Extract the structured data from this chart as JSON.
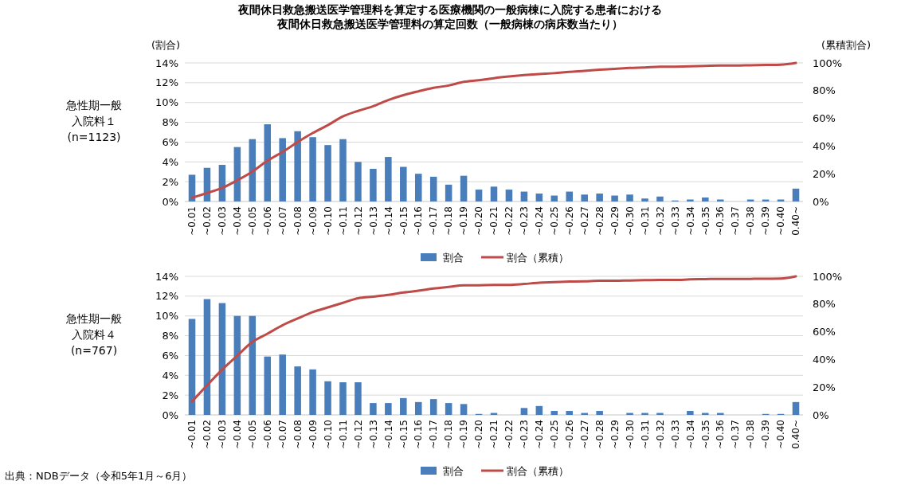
{
  "chart_data": [
    {
      "type": "bar",
      "title": "夜間休日救急搬送医学管理料を算定する医療機関の一般病棟に入院する患者における夜間休日救急搬送医学管理料の算定回数（一般病棟の病床数当たり）",
      "ylabel": "(割合)",
      "y2label": "(累積割合)",
      "categories": [
        "~0.01",
        "~0.02",
        "~0.03",
        "~0.04",
        "~0.05",
        "~0.06",
        "~0.07",
        "~0.08",
        "~0.09",
        "~0.10",
        "~0.11",
        "~0.12",
        "~0.13",
        "~0.14",
        "~0.15",
        "~0.16",
        "~0.17",
        "~0.18",
        "~0.19",
        "~0.20",
        "~0.21",
        "~0.22",
        "~0.23",
        "~0.24",
        "~0.25",
        "~0.26",
        "~0.27",
        "~0.28",
        "~0.29",
        "~0.30",
        "~0.31",
        "~0.32",
        "~0.33",
        "~0.34",
        "~0.35",
        "~0.36",
        "~0.37",
        "~0.38",
        "~0.39",
        "~0.40",
        "0.40~"
      ],
      "series": [
        {
          "name": "割合",
          "color": "#4a7ebb",
          "values": [
            2.7,
            3.4,
            3.7,
            5.5,
            6.3,
            7.8,
            6.4,
            7.1,
            6.5,
            5.7,
            6.3,
            4.0,
            3.3,
            4.5,
            3.5,
            2.8,
            2.5,
            1.7,
            2.6,
            1.2,
            1.5,
            1.2,
            1.0,
            0.8,
            0.6,
            1.0,
            0.7,
            0.8,
            0.6,
            0.7,
            0.3,
            0.5,
            0.1,
            0.2,
            0.4,
            0.2,
            0,
            0.2,
            0.2,
            0.2,
            1.3
          ]
        },
        {
          "name": "割合（累積）",
          "type": "line",
          "axis": "y2",
          "color": "#be4b48",
          "values": [
            2.7,
            6.1,
            9.8,
            15.3,
            21.6,
            29.4,
            35.8,
            42.9,
            49.4,
            55.1,
            61.4,
            65.4,
            68.7,
            73.2,
            76.7,
            79.5,
            82,
            83.7,
            86.3,
            87.5,
            89,
            90.2,
            91.2,
            92,
            92.6,
            93.6,
            94.3,
            95.1,
            95.7,
            96.4,
            96.7,
            97.2,
            97.3,
            97.5,
            97.9,
            98.1,
            98.1,
            98.3,
            98.5,
            98.7,
            100
          ]
        }
      ],
      "ylim": [
        0,
        14
      ],
      "yticks": [
        {
          "value": 0,
          "label": "0%"
        },
        {
          "value": 2,
          "label": "2%"
        },
        {
          "value": 4,
          "label": "4%"
        },
        {
          "value": 6,
          "label": "6%"
        },
        {
          "value": 8,
          "label": "8%"
        },
        {
          "value": 10,
          "label": "10%"
        },
        {
          "value": 12,
          "label": "12%"
        },
        {
          "value": 14,
          "label": "14%"
        }
      ],
      "y2lim": [
        0,
        100
      ],
      "y2ticks": [
        {
          "value": 0,
          "label": "0%"
        },
        {
          "value": 20,
          "label": "20%"
        },
        {
          "value": 40,
          "label": "40%"
        },
        {
          "value": 60,
          "label": "60%"
        },
        {
          "value": 80,
          "label": "80%"
        },
        {
          "value": 100,
          "label": "100%"
        }
      ],
      "grid": "y",
      "legend": "bottom",
      "annotations": [
        "急性期一般入院料１",
        "(n=1123)"
      ]
    },
    {
      "type": "bar",
      "categories": [
        "~0.01",
        "~0.02",
        "~0.03",
        "~0.04",
        "~0.05",
        "~0.06",
        "~0.07",
        "~0.08",
        "~0.09",
        "~0.10",
        "~0.11",
        "~0.12",
        "~0.13",
        "~0.14",
        "~0.15",
        "~0.16",
        "~0.17",
        "~0.18",
        "~0.19",
        "~0.20",
        "~0.21",
        "~0.22",
        "~0.23",
        "~0.24",
        "~0.25",
        "~0.26",
        "~0.27",
        "~0.28",
        "~0.29",
        "~0.30",
        "~0.31",
        "~0.32",
        "~0.33",
        "~0.34",
        "~0.35",
        "~0.36",
        "~0.37",
        "~0.38",
        "~0.39",
        "~0.40",
        "0.40~"
      ],
      "series": [
        {
          "name": "割合",
          "color": "#4a7ebb",
          "values": [
            9.7,
            11.7,
            11.3,
            10.0,
            10.0,
            5.9,
            6.1,
            4.9,
            4.6,
            3.4,
            3.3,
            3.3,
            1.2,
            1.2,
            1.7,
            1.3,
            1.6,
            1.2,
            1.1,
            0.1,
            0.2,
            0,
            0.7,
            0.9,
            0.4,
            0.4,
            0.2,
            0.4,
            0,
            0.2,
            0.2,
            0.2,
            0,
            0.4,
            0.2,
            0.2,
            0,
            0,
            0.1,
            0.1,
            1.3
          ]
        },
        {
          "name": "割合（累積）",
          "type": "line",
          "axis": "y2",
          "color": "#be4b48",
          "values": [
            9.7,
            21.4,
            32.7,
            42.7,
            52.7,
            58.6,
            64.7,
            69.6,
            74.2,
            77.6,
            80.9,
            84.2,
            85.4,
            86.6,
            88.3,
            89.6,
            91.2,
            92.4,
            93.5,
            93.6,
            93.8,
            93.8,
            94.5,
            95.4,
            95.8,
            96.2,
            96.4,
            96.8,
            96.8,
            97,
            97.2,
            97.4,
            97.4,
            97.8,
            98,
            98.2,
            98.2,
            98.2,
            98.3,
            98.4,
            100
          ]
        }
      ],
      "ylim": [
        0,
        14
      ],
      "yticks": [
        {
          "value": 0,
          "label": "0%"
        },
        {
          "value": 2,
          "label": "2%"
        },
        {
          "value": 4,
          "label": "4%"
        },
        {
          "value": 6,
          "label": "6%"
        },
        {
          "value": 8,
          "label": "8%"
        },
        {
          "value": 10,
          "label": "10%"
        },
        {
          "value": 12,
          "label": "12%"
        },
        {
          "value": 14,
          "label": "14%"
        }
      ],
      "y2lim": [
        0,
        100
      ],
      "y2ticks": [
        {
          "value": 0,
          "label": "0%"
        },
        {
          "value": 20,
          "label": "20%"
        },
        {
          "value": 40,
          "label": "40%"
        },
        {
          "value": 60,
          "label": "60%"
        },
        {
          "value": 80,
          "label": "80%"
        },
        {
          "value": 100,
          "label": "100%"
        }
      ],
      "grid": "y",
      "legend": "bottom",
      "annotations": [
        "急性期一般入院料４",
        "(n=767)",
        "出典：NDBデータ（令和5年1月～6月）"
      ]
    }
  ]
}
